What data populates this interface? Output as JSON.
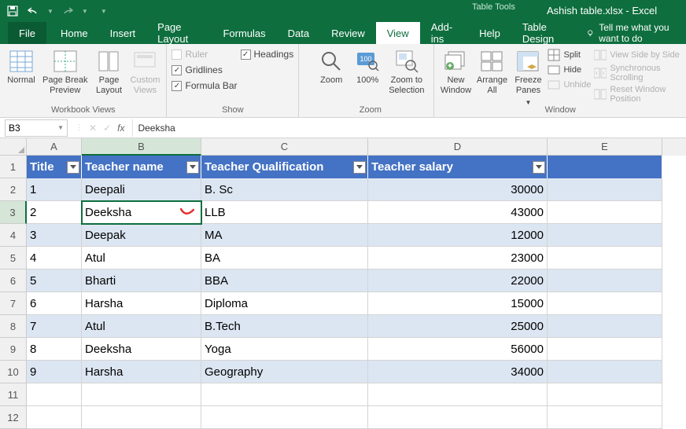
{
  "titlebar": {
    "table_tools": "Table Tools",
    "title": "Ashish table.xlsx - Excel"
  },
  "tabs": {
    "file": "File",
    "home": "Home",
    "insert": "Insert",
    "page_layout": "Page Layout",
    "formulas": "Formulas",
    "data": "Data",
    "review": "Review",
    "view": "View",
    "addins": "Add-ins",
    "help": "Help",
    "table_design": "Table Design",
    "tell_me": "Tell me what you want to do"
  },
  "ribbon": {
    "views": {
      "normal": "Normal",
      "page_break": "Page Break\nPreview",
      "page_layout": "Page\nLayout",
      "custom": "Custom\nViews",
      "group": "Workbook Views"
    },
    "show": {
      "ruler": "Ruler",
      "gridlines": "Gridlines",
      "formula_bar": "Formula Bar",
      "headings": "Headings",
      "group": "Show"
    },
    "zoom": {
      "zoom": "Zoom",
      "hundred": "100%",
      "selection": "Zoom to\nSelection",
      "group": "Zoom"
    },
    "window": {
      "new": "New\nWindow",
      "arrange": "Arrange\nAll",
      "freeze": "Freeze\nPanes",
      "split": "Split",
      "hide": "Hide",
      "unhide": "Unhide",
      "side": "View Side by Side",
      "sync": "Synchronous Scrolling",
      "reset": "Reset Window Position",
      "group": "Window"
    }
  },
  "formula_bar": {
    "name_box": "B3",
    "value": "Deeksha"
  },
  "columns": [
    "A",
    "B",
    "C",
    "D",
    "E"
  ],
  "row_numbers": [
    1,
    2,
    3,
    4,
    5,
    6,
    7,
    8,
    9,
    10,
    11,
    12
  ],
  "table": {
    "headers": [
      "Title",
      "Teacher name",
      "Teacher Qualification",
      "Teacher salary"
    ],
    "rows": [
      [
        "1",
        "Deepali",
        "B. Sc",
        "30000"
      ],
      [
        "2",
        "Deeksha",
        "LLB",
        "43000"
      ],
      [
        "3",
        "Deepak",
        "MA",
        "12000"
      ],
      [
        "4",
        "Atul",
        "BA",
        "23000"
      ],
      [
        "5",
        "Bharti",
        "BBA",
        "22000"
      ],
      [
        "6",
        "Harsha",
        "Diploma",
        "15000"
      ],
      [
        "7",
        "Atul",
        "B.Tech",
        "25000"
      ],
      [
        "8",
        "Deeksha",
        "Yoga",
        "56000"
      ],
      [
        "9",
        "Harsha",
        "Geography",
        "34000"
      ]
    ]
  },
  "active_cell": {
    "row": 3,
    "col": "B"
  },
  "colors": {
    "brand": "#0e6e3e",
    "tbl_header": "#4472c4",
    "tbl_band": "#dce6f2"
  }
}
